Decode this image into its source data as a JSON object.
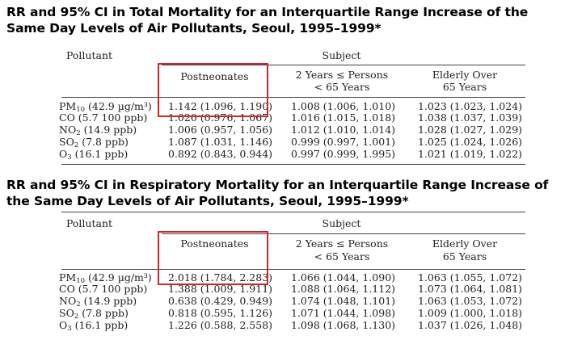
{
  "tables": [
    {
      "title_line1": "RR and 95% CI in Total Mortality for an Interquartile Range Increase of the",
      "title_line2": "Same Day Levels of Air Pollutants, Seoul, 1995–1999*",
      "pollutant_header": "Pollutant",
      "subject_header": "Subject",
      "col1_header": "Postneonates",
      "col2_header_line1": "2 Years ≤ Persons",
      "col2_header_line2": "< 65 Years",
      "col3_header_line1": "Elderly Over",
      "col3_header_line2": "65 Years",
      "rows": [
        {
          "main": "PM",
          "sub": "10",
          "conc": " (42.9 µg/m³)",
          "c1": "1.142 (1.096, 1.190)",
          "c2": "1.008 (1.006, 1.010)",
          "c3": "1.023 (1.023, 1.024)"
        },
        {
          "main": "CO",
          "sub": "",
          "conc": " (5.7 100 ppb)",
          "c1": "1.020 (0.976, 1.067)",
          "c2": "1.016 (1.015, 1.018)",
          "c3": "1.038 (1.037, 1.039)"
        },
        {
          "main": "NO",
          "sub": "2",
          "conc": " (14.9 ppb)",
          "c1": "1.006 (0.957, 1.056)",
          "c2": "1.012 (1.010, 1.014)",
          "c3": "1.028 (1.027, 1.029)"
        },
        {
          "main": "SO",
          "sub": "2",
          "conc": " (7.8 ppb)",
          "c1": "1.087 (1.031, 1.146)",
          "c2": "0.999 (0.997, 1.001)",
          "c3": "1.025 (1.024, 1.026)"
        },
        {
          "main": "O",
          "sub": "3",
          "conc": " (16.1 ppb)",
          "c1": "0.892 (0.843, 0.944)",
          "c2": "0.997 (0.999, 1.995)",
          "c3": "1.021 (1.019, 1.022)"
        }
      ]
    },
    {
      "title_line1": "RR and 95% CI in Respiratory Mortality for an Interquartile Range Increase of",
      "title_line2": "the Same Day Levels of Air Pollutants, Seoul, 1995–1999*",
      "pollutant_header": "Pollutant",
      "subject_header": "Subject",
      "col1_header": "Postneonates",
      "col2_header_line1": "2 Years ≤ Persons",
      "col2_header_line2": "< 65 Years",
      "col3_header_line1": "Elderly Over",
      "col3_header_line2": "65 Years",
      "rows": [
        {
          "main": "PM",
          "sub": "10",
          "conc": " (42.9 µg/m³)",
          "c1": "2.018 (1.784, 2.283)",
          "c2": "1.066 (1.044, 1.090)",
          "c3": "1.063 (1.055, 1.072)"
        },
        {
          "main": "CO",
          "sub": "",
          "conc": " (5.7 100 ppb)",
          "c1": "1.388 (1.009, 1.911)",
          "c2": "1.088 (1.064, 1.112)",
          "c3": "1.073 (1.064, 1.081)"
        },
        {
          "main": "NO",
          "sub": "2",
          "conc": " (14.9 ppb)",
          "c1": "0.638 (0.429, 0.949)",
          "c2": "1.074 (1.048, 1.101)",
          "c3": "1.063 (1.053, 1.072)"
        },
        {
          "main": "SO",
          "sub": "2",
          "conc": " (7.8 ppb)",
          "c1": "0.818 (0.595, 1.126)",
          "c2": "1.071 (1.044, 1.098)",
          "c3": "1.009 (1.000, 1.018)"
        },
        {
          "main": "O",
          "sub": "3",
          "conc": " (16.1 ppb)",
          "c1": "1.226 (0.588, 2.558)",
          "c2": "1.098 (1.068, 1.130)",
          "c3": "1.037 (1.026, 1.048)"
        }
      ]
    }
  ],
  "highlight_color": "#d0252b"
}
